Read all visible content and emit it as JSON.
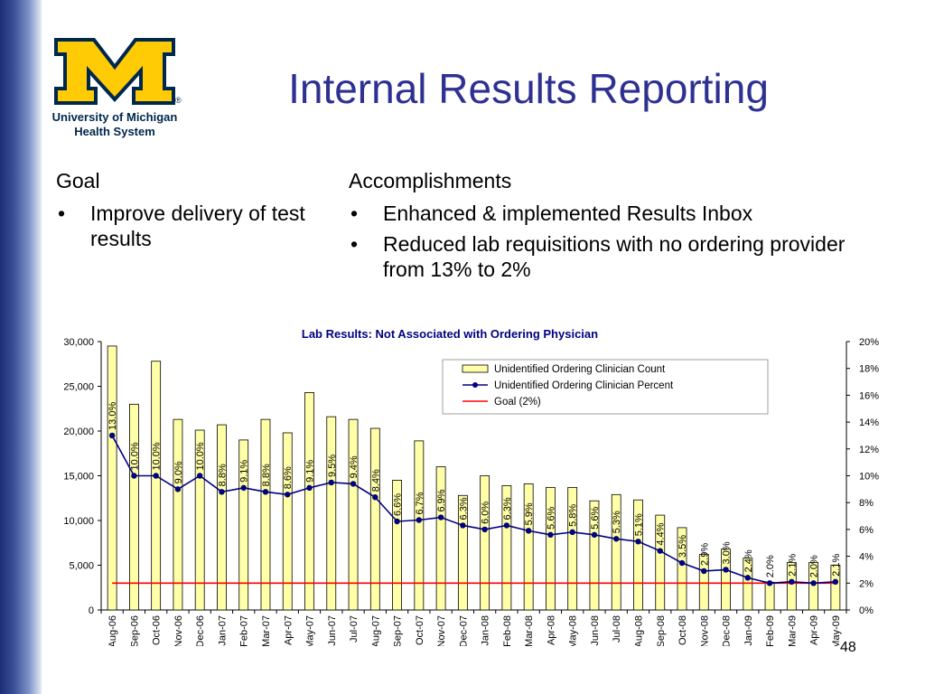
{
  "logo": {
    "letter": "M",
    "line1": "University of Michigan",
    "line2": "Health System",
    "registered": "®",
    "colors": {
      "gold": "#FFCB05",
      "blue": "#00274C"
    }
  },
  "slide": {
    "title": "Internal Results Reporting",
    "page_number": "48"
  },
  "goal": {
    "heading": "Goal",
    "bullets": [
      "Improve delivery of test results"
    ]
  },
  "accomplishments": {
    "heading": "Accomplishments",
    "bullets": [
      "Enhanced & implemented Results Inbox",
      "Reduced lab requisitions with no ordering provider from 13% to 2%"
    ]
  },
  "bullet_symbol": "•",
  "chart_data": {
    "type": "bar",
    "title": "Lab Results: Not Associated with Ordering Physician",
    "categories": [
      "Aug-06",
      "Sep-06",
      "Oct-06",
      "Nov-06",
      "Dec-06",
      "Jan-07",
      "Feb-07",
      "Mar-07",
      "Apr-07",
      "May-07",
      "Jun-07",
      "Jul-07",
      "Aug-07",
      "Sep-07",
      "Oct-07",
      "Nov-07",
      "Dec-07",
      "Jan-08",
      "Feb-08",
      "Mar-08",
      "Apr-08",
      "May-08",
      "Jun-08",
      "Jul-08",
      "Aug-08",
      "Sep-08",
      "Oct-08",
      "Nov-08",
      "Dec-08",
      "Jan-09",
      "Feb-09",
      "Mar-09",
      "Apr-09",
      "May-09"
    ],
    "series": [
      {
        "name": "Unidentified Ordering Clinician Count",
        "kind": "bar",
        "axis": "left",
        "color": "#FFFFA8",
        "values": [
          29500,
          23000,
          27800,
          21300,
          20100,
          20700,
          19000,
          21300,
          19800,
          24300,
          21600,
          21300,
          20300,
          14500,
          18900,
          16000,
          12800,
          15000,
          13900,
          14100,
          13700,
          13700,
          12200,
          12900,
          12300,
          10600,
          9200,
          6200,
          6800,
          5800,
          3100,
          5300,
          5300,
          5000
        ]
      },
      {
        "name": "Unidentified Ordering Clinician Percent",
        "kind": "line",
        "axis": "right",
        "color": "#000080",
        "values": [
          13.0,
          10.0,
          10.0,
          9.0,
          10.0,
          8.8,
          9.1,
          8.8,
          8.6,
          9.1,
          9.5,
          9.4,
          8.4,
          6.6,
          6.7,
          6.9,
          6.3,
          6.0,
          6.3,
          5.9,
          5.6,
          5.8,
          5.6,
          5.3,
          5.1,
          4.4,
          3.5,
          2.9,
          3.0,
          2.4,
          2.0,
          2.1,
          2.0,
          2.1
        ],
        "labels": [
          "13.0%",
          "10.0%",
          "10.0%",
          "9.0%",
          "10.0%",
          "8.8%",
          "9.1%",
          "8.8%",
          "8.6%",
          "9.1%",
          "9.5%",
          "9.4%",
          "8.4%",
          "6.6%",
          "6.7%",
          "6.9%",
          "6.3%",
          "6.0%",
          "6.3%",
          "5.9%",
          "5.6%",
          "5.8%",
          "5.6%",
          "5.3%",
          "5.1%",
          "4.4%",
          "3.5%",
          "2.9%",
          "3.0%",
          "2.4%",
          "2.0%",
          "2.1%",
          "2.0%",
          "2.1%"
        ]
      },
      {
        "name": "Goal (2%)",
        "kind": "line",
        "axis": "right",
        "color": "#FF0000",
        "values": [
          2,
          2,
          2,
          2,
          2,
          2,
          2,
          2,
          2,
          2,
          2,
          2,
          2,
          2,
          2,
          2,
          2,
          2,
          2,
          2,
          2,
          2,
          2,
          2,
          2,
          2,
          2,
          2,
          2,
          2,
          2,
          2,
          2,
          2
        ]
      }
    ],
    "y_left": {
      "range": [
        0,
        30000
      ],
      "ticks": [
        0,
        5000,
        10000,
        15000,
        20000,
        25000,
        30000
      ],
      "tick_labels": [
        "0",
        "5,000",
        "10,000",
        "15,000",
        "20,000",
        "25,000",
        "30,000"
      ]
    },
    "y_right": {
      "range": [
        0,
        20
      ],
      "ticks": [
        0,
        2,
        4,
        6,
        8,
        10,
        12,
        14,
        16,
        18,
        20
      ],
      "tick_labels": [
        "0%",
        "2%",
        "4%",
        "6%",
        "8%",
        "10%",
        "12%",
        "14%",
        "16%",
        "18%",
        "20%"
      ]
    },
    "legend_position": "top-right",
    "grid": false,
    "title_color": "#000080"
  }
}
